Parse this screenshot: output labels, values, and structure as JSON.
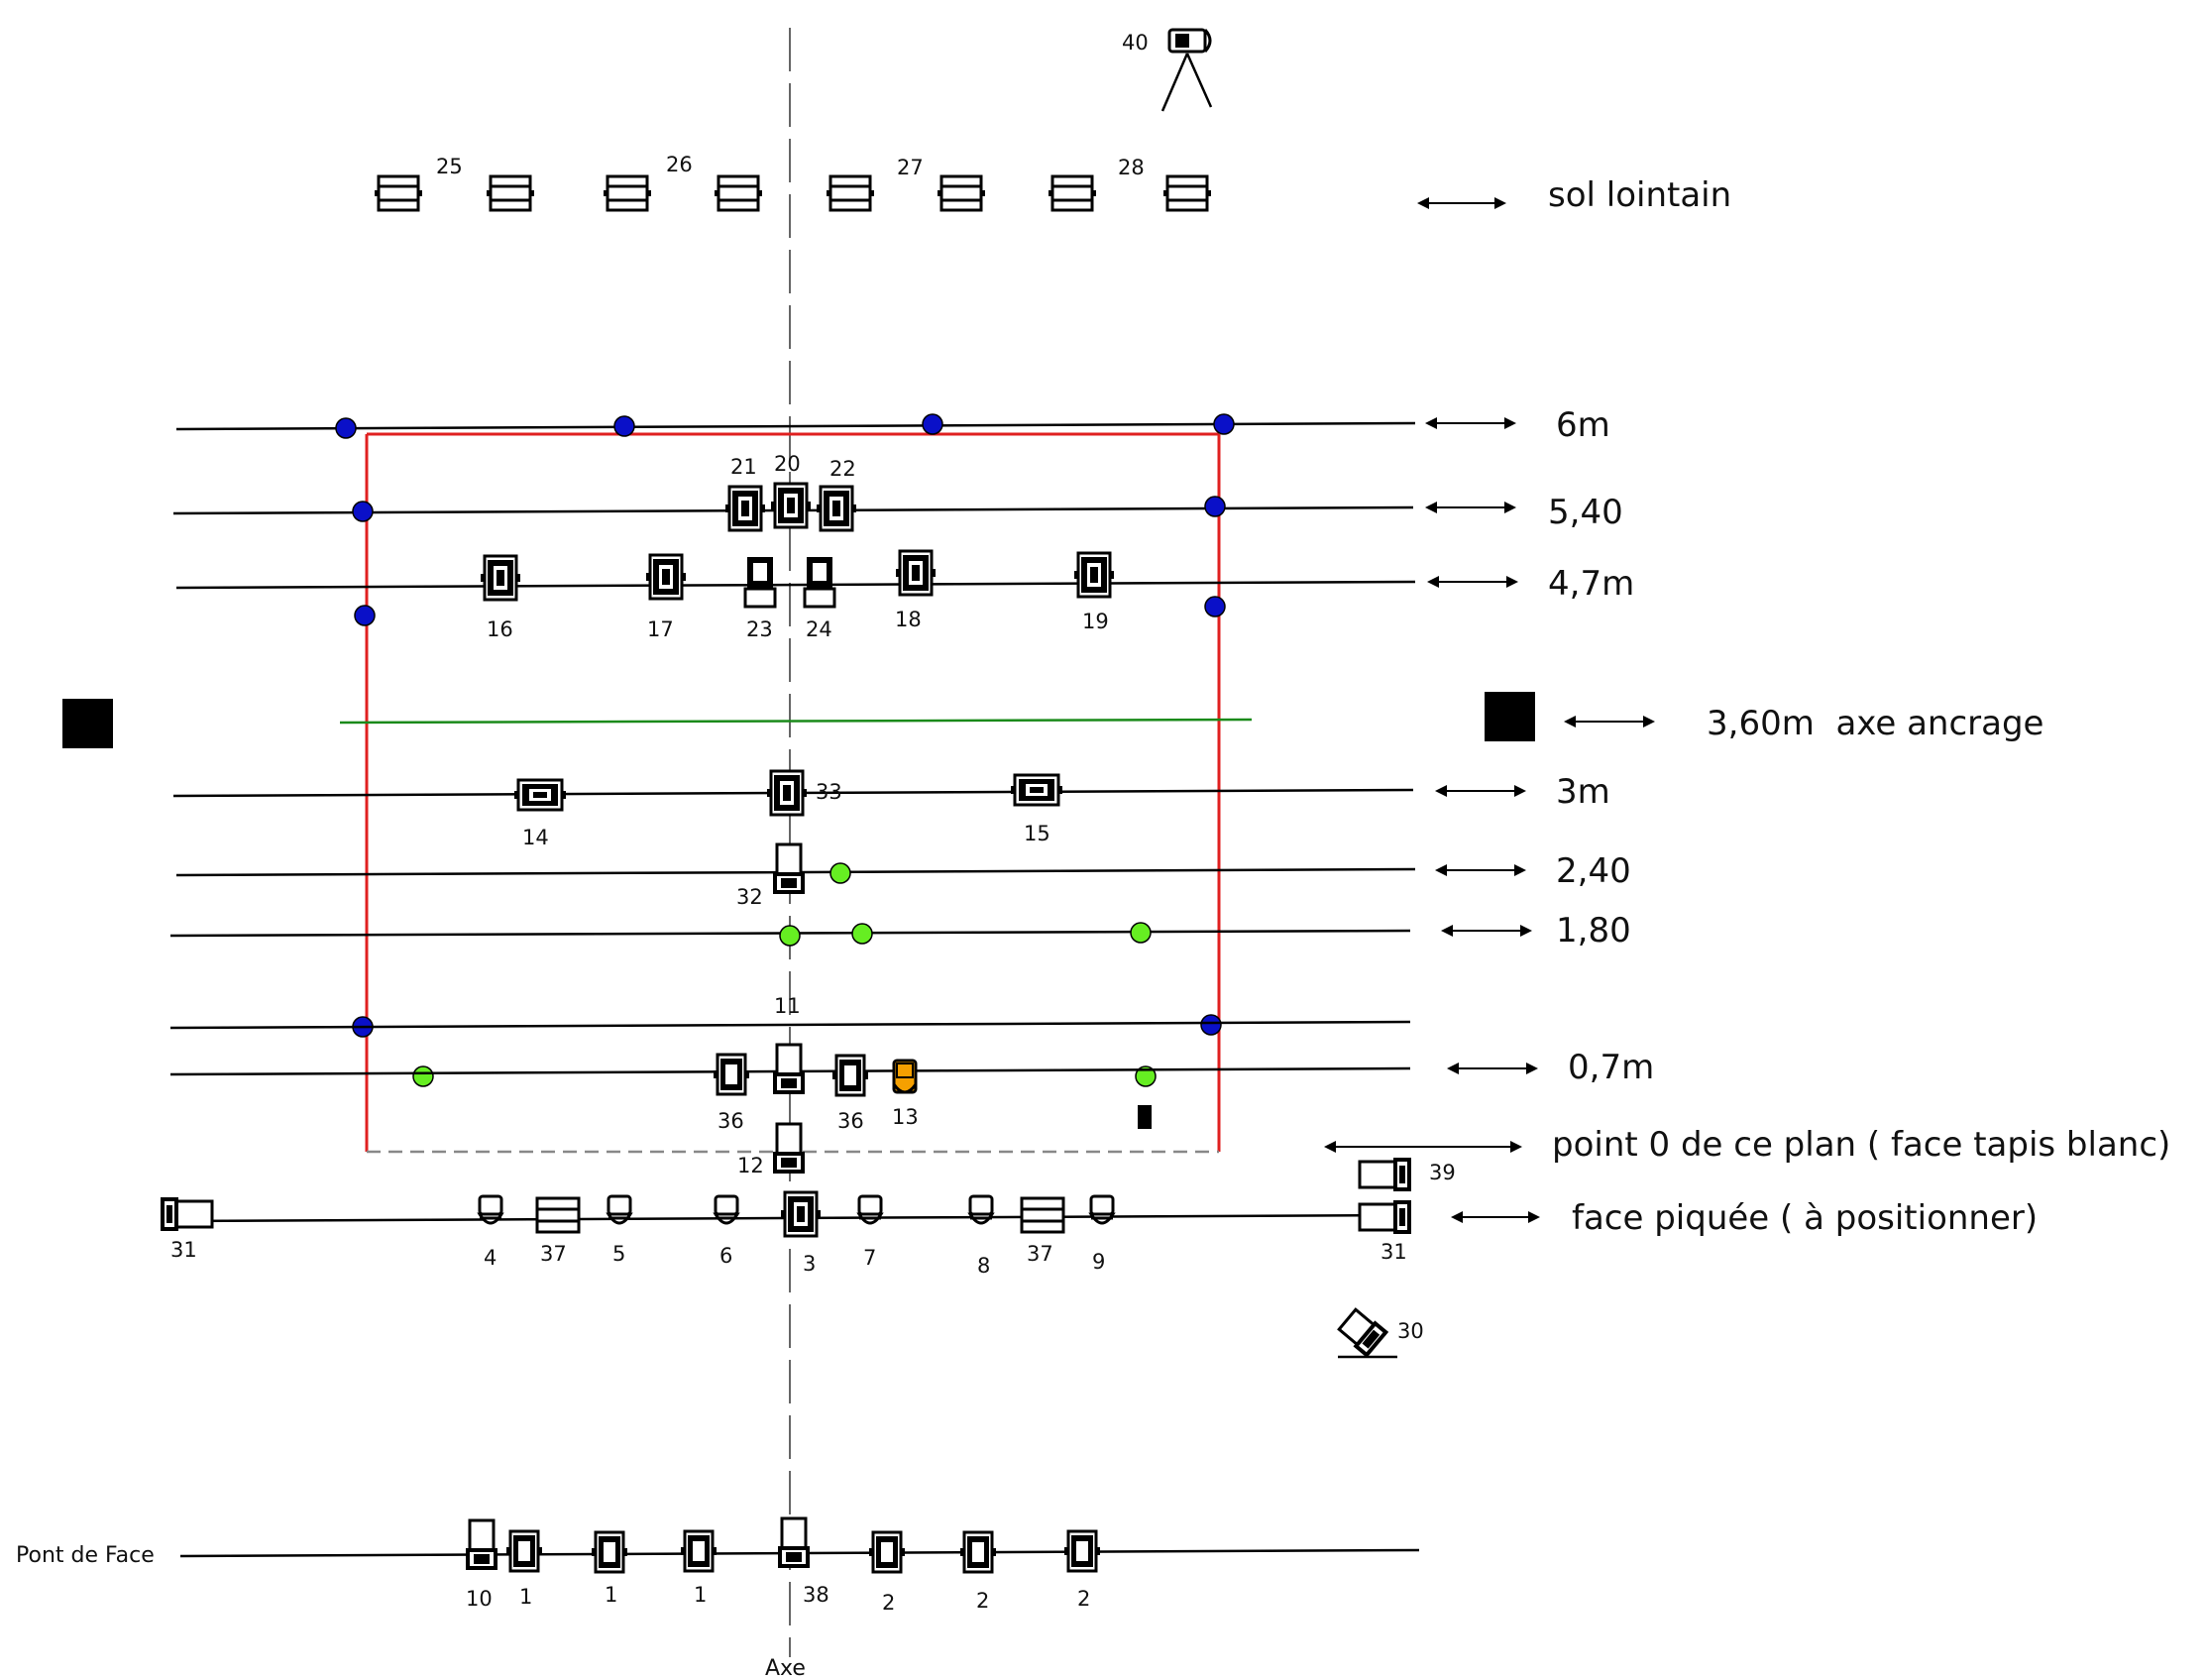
{
  "distances": {
    "sol_lointain": "sol lointain",
    "d6m": "6m",
    "d540": "5,40",
    "d47": "4,7m",
    "d360": "3,60m  axe ancrage",
    "d3m": "3m",
    "d240": "2,40",
    "d180": "1,80",
    "d07": "0,7m",
    "point0": "point 0 de ce plan ( face tapis blanc)",
    "face_piquee": "face piquée ( à positionner)"
  },
  "labels": {
    "axe": "Axe",
    "pont_de_face": "Pont de Face"
  },
  "fixtures": {
    "f40": "40",
    "f25": "25",
    "f26": "26",
    "f27": "27",
    "f28": "28",
    "f21": "21",
    "f20": "20",
    "f22": "22",
    "f16": "16",
    "f17": "17",
    "f23": "23",
    "f24": "24",
    "f18": "18",
    "f19": "19",
    "f14": "14",
    "f33": "33",
    "f15": "15",
    "f32": "32",
    "f11": "11",
    "f36a": "36",
    "f36b": "36",
    "f13": "13",
    "f12": "12",
    "f39": "39",
    "f31a": "31",
    "f31b": "31",
    "f4": "4",
    "f37a": "37",
    "f5": "5",
    "f6": "6",
    "f3": "3",
    "f7": "7",
    "f8": "8",
    "f37b": "37",
    "f9": "9",
    "f30": "30",
    "f10": "10",
    "f1a": "1",
    "f1b": "1",
    "f1c": "1",
    "f38": "38",
    "f2a": "2",
    "f2b": "2",
    "f2c": "2"
  },
  "colors": {
    "stage_outline": "#e02020",
    "anchor_axis": "#1a8a1a",
    "blue_point": "#0a10c8",
    "green_point": "#66ee22",
    "orange_fixture": "#f5a000",
    "lines": "#000000",
    "center_axis": "#666666",
    "point0_line": "#888888"
  }
}
